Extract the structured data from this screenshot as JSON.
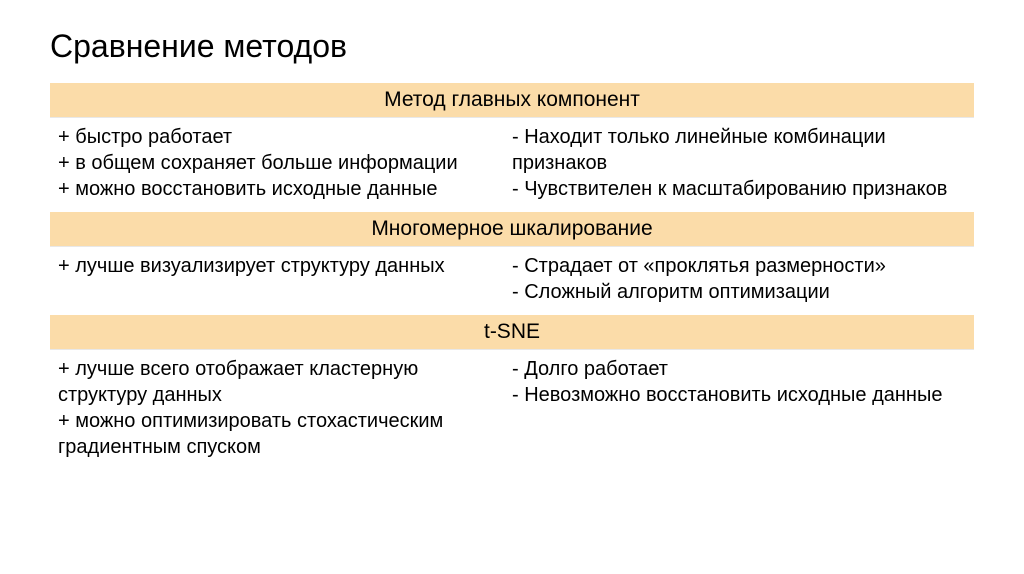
{
  "title": "Сравнение методов",
  "colors": {
    "header_bg": "#fbdca9",
    "page_bg": "#ffffff",
    "text": "#000000",
    "border": "#e8e8e8"
  },
  "typography": {
    "title_fontsize": 32,
    "header_fontsize": 21,
    "body_fontsize": 20,
    "font_family": "Arial"
  },
  "sections": {
    "pca": {
      "name": "Метод главных компонент",
      "pros": "+ быстро работает\n+ в общем сохраняет больше информации\n+ можно восстановить исходные данные",
      "cons": "- Находит только линейные комбинации признаков\n- Чувствителен к масштабированию признаков"
    },
    "mds": {
      "name": "Многомерное шкалирование",
      "pros": "+ лучше визуализирует структуру данных",
      "cons": "- Страдает от «проклятья размерности»\n- Сложный алгоритм оптимизации"
    },
    "tsne": {
      "name": "t-SNE",
      "pros": "+ лучше всего отображает кластерную структуру данных\n+ можно оптимизировать стохастическим градиентным спуском",
      "cons": "- Долго работает\n- Невозможно восстановить исходные данные"
    }
  }
}
